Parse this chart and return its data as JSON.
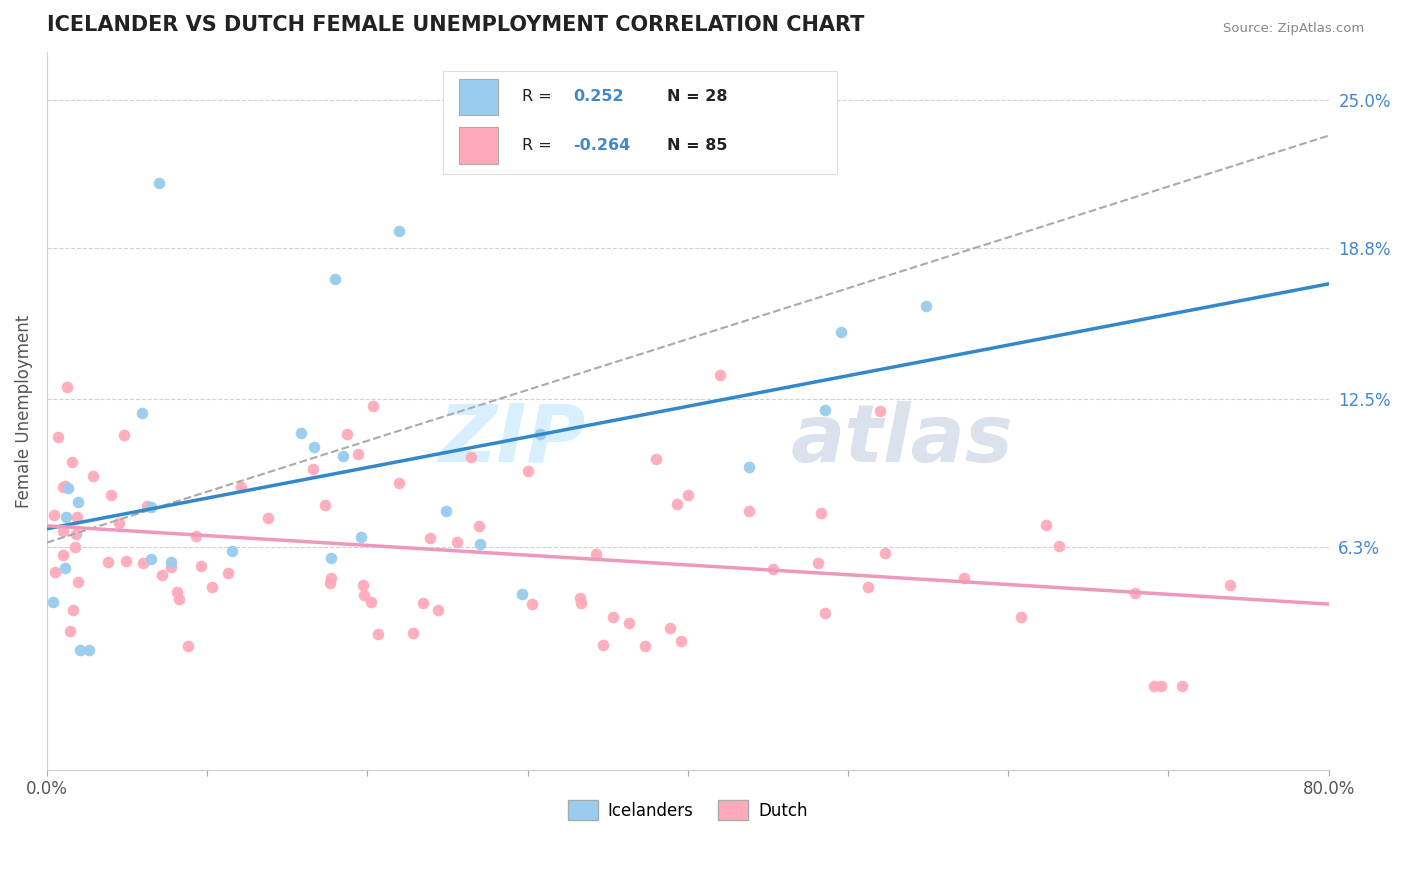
{
  "title": "ICELANDER VS DUTCH FEMALE UNEMPLOYMENT CORRELATION CHART",
  "source": "Source: ZipAtlas.com",
  "ylabel": "Female Unemployment",
  "xlim": [
    0.0,
    0.8
  ],
  "ylim": [
    -0.03,
    0.27
  ],
  "yticks": [
    0.063,
    0.125,
    0.188,
    0.25
  ],
  "ytick_labels": [
    "6.3%",
    "12.5%",
    "18.8%",
    "25.0%"
  ],
  "icelander_color": "#99ccee",
  "dutch_color": "#ffaabb",
  "icelander_R": 0.252,
  "icelander_N": 28,
  "dutch_R": -0.264,
  "dutch_N": 85,
  "legend_label_1": "Icelanders",
  "legend_label_2": "Dutch",
  "watermark_1": "ZIP",
  "watermark_2": "atlas",
  "background_color": "#ffffff",
  "grid_color": "#cccccc",
  "trend_blue": "#3388cc",
  "trend_pink": "#ee99bb",
  "trend_gray": "#aaaaaa",
  "label_color": "#4488cc",
  "title_color": "#222222"
}
